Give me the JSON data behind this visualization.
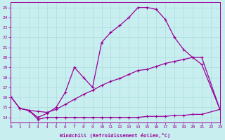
{
  "xlabel": "Windchill (Refroidissement éolien,°C)",
  "xlim": [
    0,
    23
  ],
  "ylim": [
    13.5,
    25.5
  ],
  "bg_color": "#c8eef0",
  "line_color": "#990099",
  "grid_color": "#aadddd",
  "line1_x": [
    0,
    1,
    2,
    3,
    4,
    5,
    6,
    7,
    8,
    9,
    10,
    11,
    12,
    13,
    14,
    15,
    16,
    17,
    18,
    19,
    20,
    21,
    23
  ],
  "line1_y": [
    16.1,
    14.9,
    14.7,
    14.0,
    14.4,
    15.0,
    16.5,
    19.0,
    18.0,
    17.0,
    21.5,
    22.5,
    23.2,
    24.0,
    25.0,
    25.0,
    24.8,
    23.8,
    22.0,
    20.8,
    20.0,
    19.3,
    14.8
  ],
  "line2_x": [
    0,
    1,
    2,
    3,
    4,
    5,
    6,
    7,
    8,
    9,
    10,
    11,
    12,
    13,
    14,
    15,
    16,
    17,
    18,
    19,
    20,
    21,
    23
  ],
  "line2_y": [
    16.1,
    14.9,
    14.7,
    14.6,
    14.5,
    14.8,
    15.3,
    15.8,
    16.3,
    16.7,
    17.2,
    17.6,
    17.9,
    18.3,
    18.7,
    18.8,
    19.1,
    19.4,
    19.6,
    19.8,
    20.0,
    20.0,
    14.8
  ],
  "line3_x": [
    1,
    2,
    3,
    4,
    5,
    6,
    7,
    8,
    9,
    10,
    11,
    12,
    13,
    14,
    15,
    16,
    17,
    18,
    19,
    20,
    21,
    23
  ],
  "line3_y": [
    14.9,
    14.7,
    13.8,
    14.0,
    14.0,
    14.0,
    14.0,
    14.0,
    14.0,
    14.0,
    14.0,
    14.0,
    14.0,
    14.0,
    14.1,
    14.1,
    14.1,
    14.2,
    14.2,
    14.3,
    14.3,
    14.8
  ]
}
